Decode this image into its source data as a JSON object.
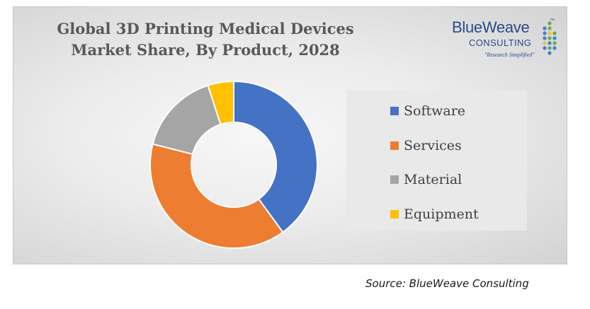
{
  "chart_data": {
    "type": "pie",
    "title_lines": [
      "Global 3D Printing Medical Devices",
      "Market Share, By Product, 2028"
    ],
    "categories": [
      "Software",
      "Services",
      "Material",
      "Equipment"
    ],
    "values": [
      40,
      39,
      16,
      5
    ],
    "colors": [
      "#4472c4",
      "#ed7d31",
      "#a5a5a5",
      "#ffc000"
    ],
    "donut": true,
    "legend_position": "right"
  },
  "logo": {
    "name": "BlueWeave",
    "subtitle": "CONSULTING",
    "tagline": "\"Research Simplified\"",
    "tm": "™"
  },
  "source": "Source: BlueWeave Consulting"
}
